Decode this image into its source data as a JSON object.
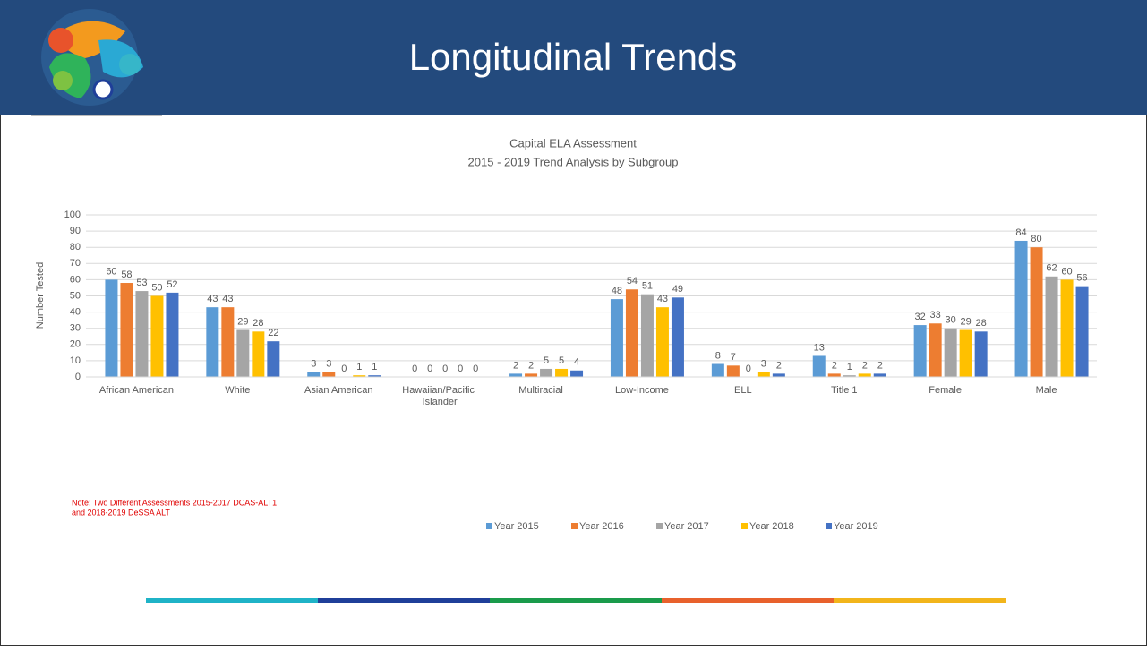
{
  "header": {
    "title": "Longitudinal Trends"
  },
  "chart_data": {
    "type": "bar",
    "title": "Capital ELA  Assessment",
    "subtitle": "2015 - 2019 Trend Analysis by Subgroup",
    "ylabel": "Number Tested",
    "categories": [
      "African American",
      "White",
      "Asian American",
      "Hawaiian/Pacific Islander",
      "Multiracial",
      "Low-Income",
      "ELL",
      "Title 1",
      "Female",
      "Male"
    ],
    "series": [
      {
        "name": "Year 2015",
        "color": "#5b9bd5",
        "values": [
          60,
          43,
          3,
          0,
          2,
          48,
          8,
          13,
          32,
          84
        ]
      },
      {
        "name": "Year 2016",
        "color": "#ed7d31",
        "values": [
          58,
          43,
          3,
          0,
          2,
          54,
          7,
          2,
          33,
          80
        ]
      },
      {
        "name": "Year 2017",
        "color": "#a5a5a5",
        "values": [
          53,
          29,
          0,
          0,
          5,
          51,
          0,
          1,
          30,
          62
        ]
      },
      {
        "name": "Year 2018",
        "color": "#ffc000",
        "values": [
          50,
          28,
          1,
          0,
          5,
          43,
          3,
          2,
          29,
          60
        ]
      },
      {
        "name": "Year 2019",
        "color": "#4472c4",
        "values": [
          52,
          22,
          1,
          0,
          4,
          49,
          2,
          2,
          28,
          56
        ]
      }
    ],
    "ylim": [
      0,
      100
    ],
    "yticks": [
      0,
      10,
      20,
      30,
      40,
      50,
      60,
      70,
      80,
      90,
      100
    ],
    "grid": true,
    "legend": "bottom",
    "annotations": [
      "Note: Two Different Assessments 2015-2017 DCAS-ALT1",
      "and 2018-2019 DeSSA ALT"
    ]
  }
}
